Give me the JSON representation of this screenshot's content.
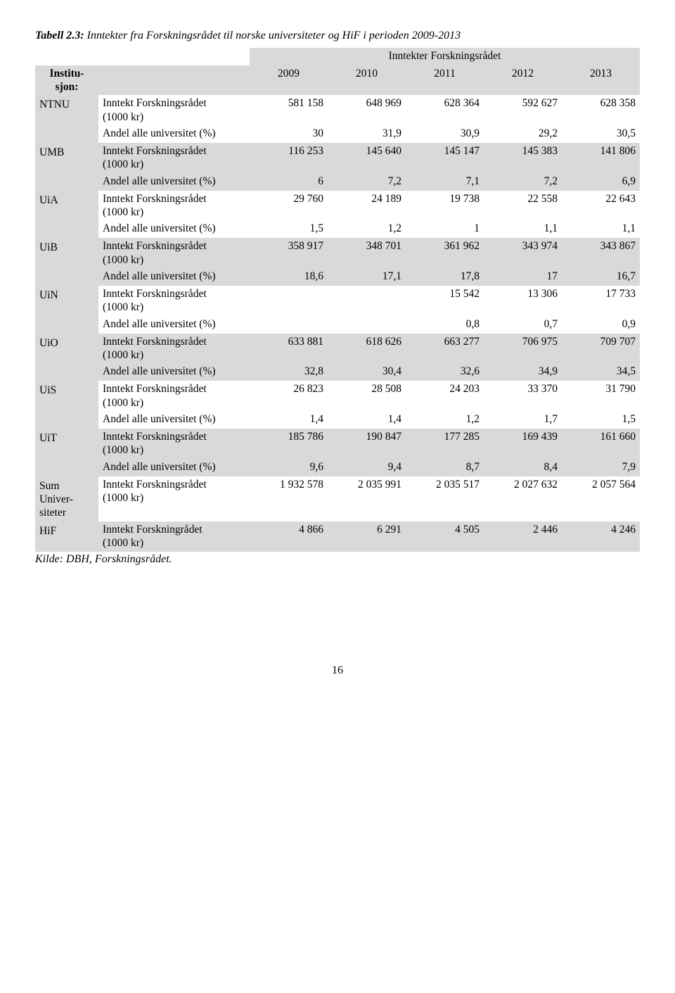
{
  "caption_bold": "Tabell 2.3:",
  "caption_rest": " Inntekter fra Forskningsrådet til norske universiteter og HiF i perioden 2009-2013",
  "super_header": "Inntekter Forskningsrådet",
  "header_inst": "Institu-sjon:",
  "years": [
    "2009",
    "2010",
    "2011",
    "2012",
    "2013"
  ],
  "metric_income": "Inntekt Forskningsrådet (1000 kr)",
  "metric_income_alt": "Inntekt Forskningrådet (1000 kr)",
  "metric_share": "Andel alle universitet (%)",
  "rows": [
    {
      "inst": "NTNU",
      "income": [
        "581 158",
        "648 969",
        "628 364",
        "592 627",
        "628 358"
      ],
      "share": [
        "30",
        "31,9",
        "30,9",
        "29,2",
        "30,5"
      ]
    },
    {
      "inst": "UMB",
      "income": [
        "116 253",
        "145 640",
        "145 147",
        "145 383",
        "141 806"
      ],
      "share": [
        "6",
        "7,2",
        "7,1",
        "7,2",
        "6,9"
      ]
    },
    {
      "inst": "UiA",
      "income": [
        "29 760",
        "24 189",
        "19 738",
        "22 558",
        "22 643"
      ],
      "share": [
        "1,5",
        "1,2",
        "1",
        "1,1",
        "1,1"
      ]
    },
    {
      "inst": "UiB",
      "income": [
        "358 917",
        "348 701",
        "361 962",
        "343 974",
        "343 867"
      ],
      "share": [
        "18,6",
        "17,1",
        "17,8",
        "17",
        "16,7"
      ]
    },
    {
      "inst": "UiN",
      "income": [
        "",
        "",
        "15 542",
        "13 306",
        "17 733"
      ],
      "share": [
        "",
        "",
        "0,8",
        "0,7",
        "0,9"
      ]
    },
    {
      "inst": "UiO",
      "income": [
        "633 881",
        "618 626",
        "663 277",
        "706 975",
        "709 707"
      ],
      "share": [
        "32,8",
        "30,4",
        "32,6",
        "34,9",
        "34,5"
      ]
    },
    {
      "inst": "UiS",
      "income": [
        "26 823",
        "28 508",
        "24 203",
        "33 370",
        "31 790"
      ],
      "share": [
        "1,4",
        "1,4",
        "1,2",
        "1,7",
        "1,5"
      ]
    },
    {
      "inst": "UiT",
      "income": [
        "185 786",
        "190 847",
        "177 285",
        "169 439",
        "161 660"
      ],
      "share": [
        "9,6",
        "9,4",
        "8,7",
        "8,4",
        "7,9"
      ]
    }
  ],
  "sum_label": "Sum Univer-siteter",
  "sum_income": [
    "1 932 578",
    "2 035 991",
    "2 035 517",
    "2 027 632",
    "2 057 564"
  ],
  "hif_label": "HiF",
  "hif_income": [
    "4 866",
    "6 291",
    "4 505",
    "2 446",
    "4 246"
  ],
  "source": "Kilde: DBH, Forskningsrådet.",
  "page_number": "16",
  "colors": {
    "shade": "#d9d9d9",
    "bg": "#ffffff",
    "text": "#000000"
  }
}
